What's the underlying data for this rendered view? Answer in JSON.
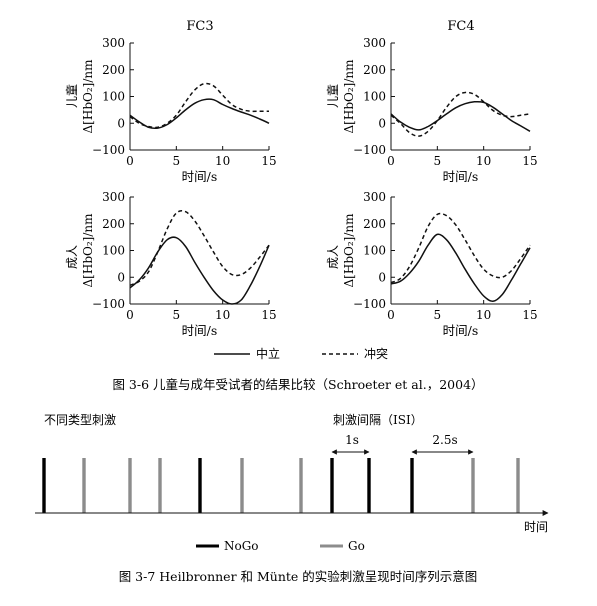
{
  "figure_3_6": {
    "caption": "图 3-6   儿童与成年受试者的结果比较（Schroeter et al.，2004）",
    "column_titles": [
      "FC3",
      "FC4"
    ],
    "row_labels": {
      "child": "儿童",
      "adult": "成人"
    },
    "ylabel": "Δ[HbO₂]/nm",
    "xlabel": "时间/s",
    "legend": {
      "neutral": "中立",
      "conflict": "冲突"
    }
  },
  "chart_data": [
    {
      "type": "line",
      "panel": "child-FC3",
      "title": "FC3",
      "xlabel": "时间/s",
      "ylabel": "儿童 Δ[HbO₂]/nm",
      "xlim": [
        0,
        15
      ],
      "ylim": [
        -100,
        300
      ],
      "xticks": [
        0,
        5,
        10,
        15
      ],
      "yticks": [
        -100,
        0,
        100,
        200,
        300
      ],
      "series": [
        {
          "name": "中立",
          "style": "solid",
          "x": [
            0,
            1,
            2,
            3,
            4,
            5,
            6,
            7,
            8,
            9,
            10,
            11,
            12,
            13,
            14,
            15
          ],
          "y": [
            30,
            5,
            -15,
            -18,
            -5,
            20,
            50,
            75,
            88,
            88,
            70,
            55,
            42,
            30,
            16,
            0
          ]
        },
        {
          "name": "冲突",
          "style": "dashed",
          "x": [
            0,
            1,
            2,
            3,
            4,
            5,
            6,
            7,
            8,
            9,
            10,
            11,
            12,
            13,
            14,
            15
          ],
          "y": [
            25,
            0,
            -12,
            -15,
            0,
            30,
            80,
            125,
            148,
            140,
            105,
            70,
            52,
            45,
            45,
            45
          ]
        }
      ]
    },
    {
      "type": "line",
      "panel": "child-FC4",
      "title": "FC4",
      "xlabel": "时间/s",
      "ylabel": "儿童 Δ[HbO₂]/nm",
      "xlim": [
        0,
        15
      ],
      "ylim": [
        -100,
        300
      ],
      "xticks": [
        0,
        5,
        10,
        15
      ],
      "yticks": [
        -100,
        0,
        100,
        200,
        300
      ],
      "series": [
        {
          "name": "中立",
          "style": "solid",
          "x": [
            0,
            1,
            2,
            3,
            4,
            5,
            6,
            7,
            8,
            9,
            10,
            11,
            12,
            13,
            14,
            15
          ],
          "y": [
            35,
            5,
            -15,
            -25,
            -12,
            10,
            35,
            58,
            73,
            80,
            78,
            60,
            35,
            10,
            -10,
            -30
          ]
        },
        {
          "name": "冲突",
          "style": "dashed",
          "x": [
            0,
            1,
            2,
            3,
            4,
            5,
            6,
            7,
            8,
            9,
            10,
            11,
            12,
            13,
            14,
            15
          ],
          "y": [
            30,
            0,
            -35,
            -48,
            -30,
            10,
            60,
            100,
            115,
            108,
            80,
            48,
            30,
            25,
            30,
            35
          ]
        }
      ]
    },
    {
      "type": "line",
      "panel": "adult-FC3",
      "title": "",
      "xlabel": "时间/s",
      "ylabel": "成人 Δ[HbO₂]/nm",
      "xlim": [
        0,
        15
      ],
      "ylim": [
        -100,
        300
      ],
      "xticks": [
        0,
        5,
        10,
        15
      ],
      "yticks": [
        -100,
        0,
        100,
        200,
        300
      ],
      "series": [
        {
          "name": "中立",
          "style": "solid",
          "x": [
            0,
            1,
            2,
            3,
            4,
            5,
            6,
            7,
            8,
            9,
            10,
            11,
            12,
            13,
            14,
            15
          ],
          "y": [
            -40,
            -10,
            35,
            95,
            140,
            148,
            115,
            55,
            0,
            -50,
            -85,
            -100,
            -85,
            -30,
            40,
            120
          ]
        },
        {
          "name": "冲突",
          "style": "dashed",
          "x": [
            0,
            1,
            2,
            3,
            4,
            5,
            6,
            7,
            8,
            9,
            10,
            11,
            12,
            13,
            14,
            15
          ],
          "y": [
            -30,
            -15,
            20,
            95,
            180,
            240,
            245,
            210,
            155,
            95,
            40,
            10,
            10,
            35,
            75,
            120
          ]
        }
      ]
    },
    {
      "type": "line",
      "panel": "adult-FC4",
      "title": "",
      "xlabel": "时间/s",
      "ylabel": "成人 Δ[HbO₂]/nm",
      "xlim": [
        0,
        15
      ],
      "ylim": [
        -100,
        300
      ],
      "xticks": [
        0,
        5,
        10,
        15
      ],
      "yticks": [
        -100,
        0,
        100,
        200,
        300
      ],
      "series": [
        {
          "name": "中立",
          "style": "solid",
          "x": [
            0,
            1,
            2,
            3,
            4,
            5,
            6,
            7,
            8,
            9,
            10,
            11,
            12,
            13,
            14,
            15
          ],
          "y": [
            -25,
            -15,
            15,
            60,
            120,
            160,
            140,
            90,
            30,
            -25,
            -70,
            -90,
            -65,
            -10,
            50,
            110
          ]
        },
        {
          "name": "冲突",
          "style": "dashed",
          "x": [
            0,
            1,
            2,
            3,
            4,
            5,
            6,
            7,
            8,
            9,
            10,
            11,
            12,
            13,
            14,
            15
          ],
          "y": [
            -20,
            -5,
            40,
            110,
            190,
            235,
            230,
            195,
            140,
            80,
            30,
            5,
            0,
            25,
            70,
            120
          ]
        }
      ]
    }
  ],
  "figure_3_7": {
    "caption": "图 3-7   Heilbronner 和 Münte 的实验刺激呈现时间序列示意图",
    "label_left": "不同类型刺激",
    "label_isi": "刺激间隔（ISI）",
    "interval_1": "1s",
    "interval_2": "2.5s",
    "axis_label": "时间",
    "legend": {
      "nogo": "NoGo",
      "go": "Go"
    },
    "colors": {
      "nogo": "#000000",
      "go": "#8c8c8c"
    },
    "stimuli": [
      "NoGo",
      "Go",
      "Go",
      "Go",
      "NoGo",
      "Go",
      "Go",
      "NoGo",
      "NoGo",
      "NoGo",
      "Go",
      "Go"
    ]
  }
}
